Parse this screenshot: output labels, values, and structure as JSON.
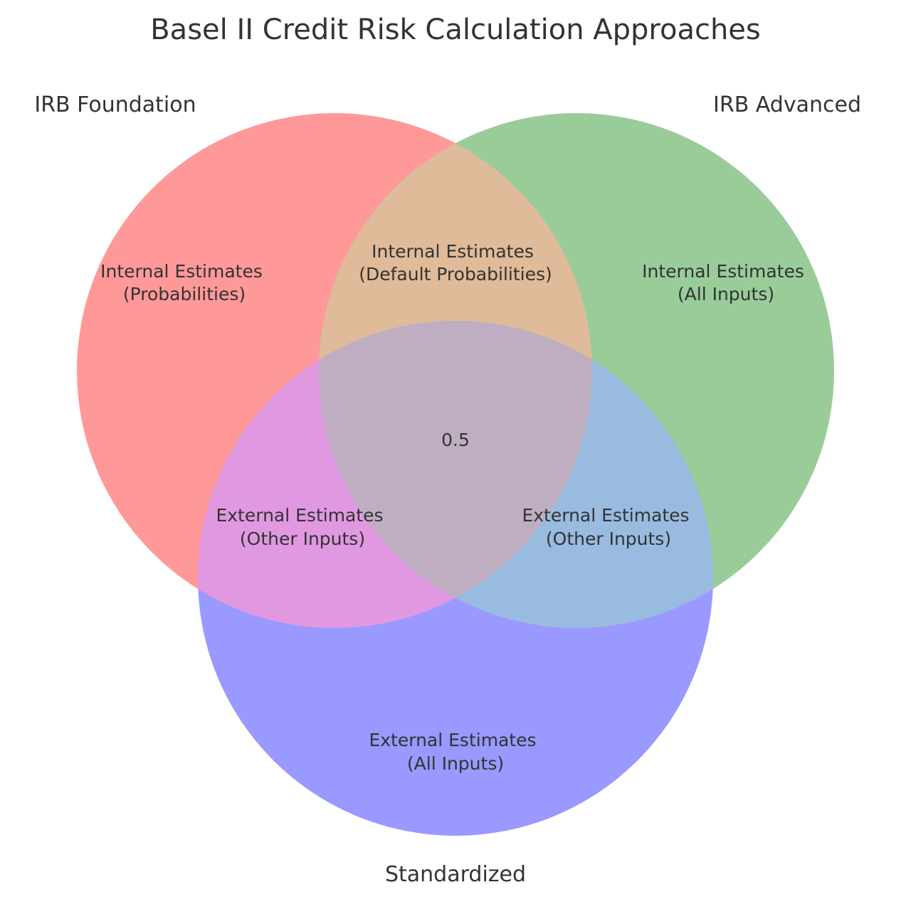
{
  "title": "Basel II Credit Risk Calculation Approaches",
  "sets": {
    "a": {
      "label": "IRB Foundation",
      "color": "#ff9999"
    },
    "b": {
      "label": "IRB Advanced",
      "color": "#99cc99"
    },
    "c": {
      "label": "Standardized",
      "color": "#9999ff"
    }
  },
  "regions": {
    "a_only": {
      "line1": "Internal Estimates",
      "line2": "(Probabilities)"
    },
    "b_only": {
      "line1": "Internal Estimates",
      "line2": "(All Inputs)"
    },
    "c_only": {
      "line1": "External Estimates",
      "line2": "(All Inputs)"
    },
    "ab": {
      "line1": "Internal Estimates",
      "line2": "(Default Probabilities)"
    },
    "ac": {
      "line1": "External Estimates",
      "line2": "(Other Inputs)"
    },
    "bc": {
      "line1": "External Estimates",
      "line2": "(Other Inputs)"
    },
    "abc": {
      "text": "0.5"
    }
  },
  "region_colors": {
    "ab": "#e0bb99",
    "ac": "#e099e0",
    "bc": "#99bbe0",
    "abc": "#bfaec2"
  }
}
